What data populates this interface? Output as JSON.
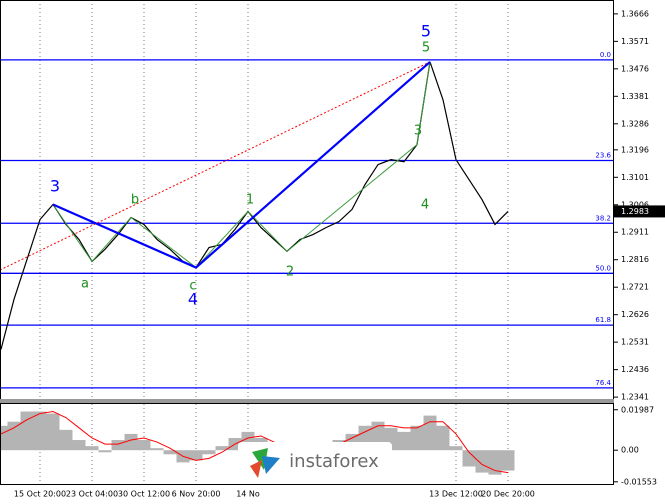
{
  "chart_data": [
    {
      "type": "line",
      "categories": [
        null,
        null,
        null,
        "15 Oct 20:00",
        null,
        null,
        null,
        "23 Oct 04:00",
        null,
        null,
        null,
        "30 Oct 12:00",
        null,
        null,
        null,
        "6 Nov 20:00",
        null,
        null,
        null,
        "14 No",
        null,
        null,
        null,
        null,
        null,
        null,
        null,
        null,
        null,
        null,
        null,
        null,
        null,
        null,
        null,
        "13 Dec 12:00",
        null,
        null,
        null,
        "20 Dec 20:00"
      ],
      "series": [
        {
          "color": "#000000",
          "values": [
            1.2506,
            1.2679,
            1.2817,
            1.2955,
            1.3007,
            1.2938,
            1.2886,
            1.281,
            1.2852,
            1.2903,
            1.2962,
            1.2938,
            1.2886,
            1.2852,
            1.281,
            1.2789,
            1.2858,
            1.2869,
            1.2921,
            1.2983,
            1.2927,
            1.2886,
            1.2845,
            1.2886,
            1.2903,
            1.2927,
            1.2948,
            1.299,
            1.3076,
            1.3145,
            1.3162,
            1.3155,
            1.3214,
            1.35,
            1.3369,
            1.3162,
            1.3093,
            1.3024,
            1.2938,
            1.2983
          ]
        }
      ],
      "ylim": [
        1.2331,
        1.3714
      ],
      "yticks": [
        1.3666,
        1.3571,
        1.3476,
        1.3381,
        1.3286,
        1.3196,
        1.3101,
        1.3006,
        1.2911,
        1.2816,
        1.2721,
        1.2626,
        1.2531,
        1.2436,
        1.2341
      ],
      "last_price": 1.2983,
      "fibonacci": [
        {
          "label": "0.0",
          "price": 1.3507
        },
        {
          "label": "23.6",
          "price": 1.3159
        },
        {
          "label": "38.2",
          "price": 1.2942
        },
        {
          "label": "50.0",
          "price": 1.2769
        },
        {
          "label": "61.8",
          "price": 1.259
        },
        {
          "label": "76.4",
          "price": 1.2373
        }
      ],
      "wave_labels": {
        "blue": [
          "3",
          "4",
          "5"
        ],
        "green": [
          "a",
          "b",
          "c",
          "1",
          "2",
          "3",
          "4",
          "5"
        ]
      },
      "watermark": "instaforex"
    },
    {
      "type": "bar",
      "series": [
        {
          "type": "bar",
          "color": "#b4b4b4",
          "values": [
            0.012,
            0.014,
            0.019,
            0.019,
            0.018,
            0.01,
            0.005,
            0.002,
            -0.001,
            0.005,
            0.008,
            0.005,
            0.001,
            -0.002,
            -0.006,
            -0.005,
            -0.002,
            0.002,
            0.006,
            0.009,
            0.006,
            0.001,
            -0.003,
            -0.002,
            0.0,
            0.003,
            0.005,
            0.008,
            0.012,
            0.014,
            0.011,
            0.009,
            0.012,
            0.017,
            0.012,
            0.002,
            -0.008,
            -0.011,
            -0.012,
            -0.01
          ]
        },
        {
          "type": "line",
          "color": "#ff0000",
          "values": [
            0.008,
            0.011,
            0.015,
            0.018,
            0.019,
            0.016,
            0.011,
            0.006,
            0.003,
            0.003,
            0.005,
            0.006,
            0.004,
            0.001,
            -0.003,
            -0.005,
            -0.004,
            -0.001,
            0.003,
            0.006,
            0.007,
            0.004,
            0.0,
            -0.002,
            -0.001,
            0.001,
            0.003,
            0.006,
            0.009,
            0.012,
            0.012,
            0.011,
            0.011,
            0.014,
            0.014,
            0.008,
            -0.001,
            -0.007,
            -0.01,
            -0.011
          ]
        }
      ],
      "ylim": [
        -0.0166,
        0.0227
      ],
      "yticks": [
        0.01987,
        {
          "value": 0,
          "label": "0.00"
        },
        -0.01553
      ]
    }
  ]
}
